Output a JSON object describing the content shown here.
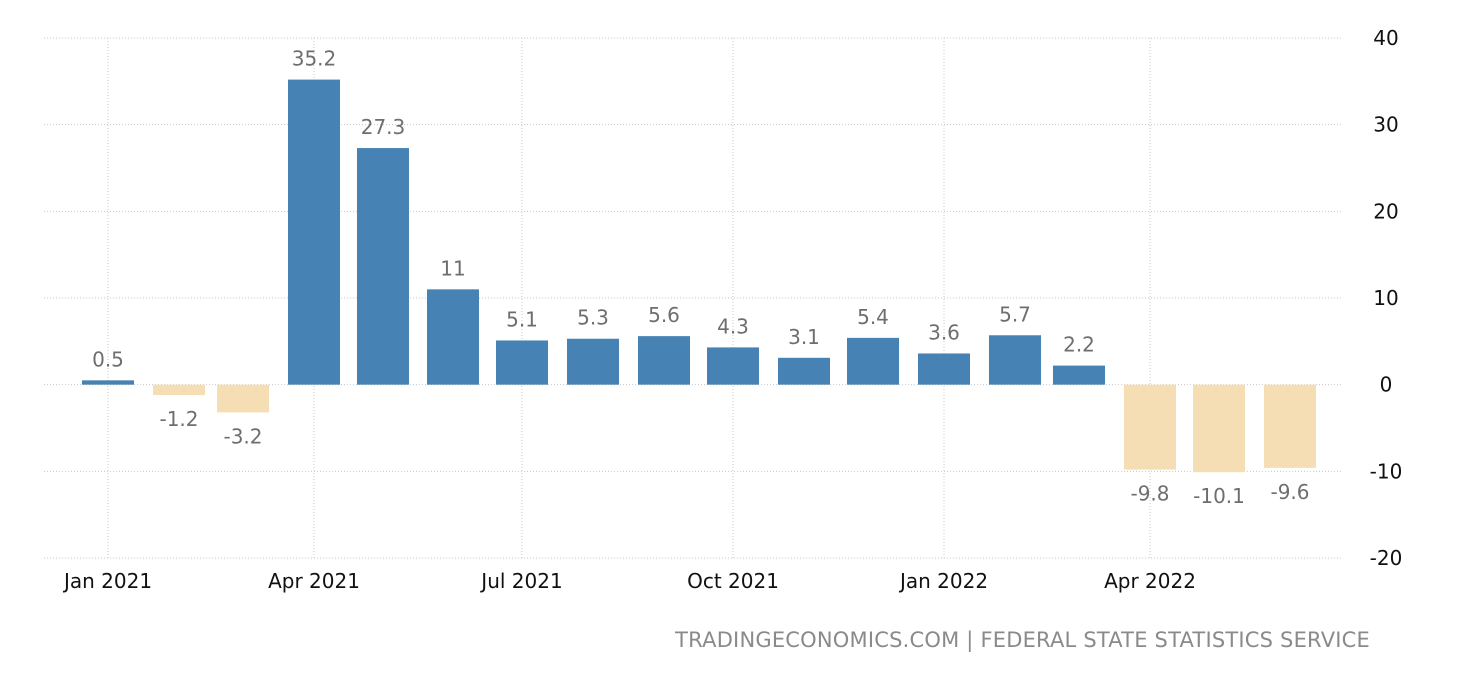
{
  "chart_data": {
    "type": "bar",
    "categories": [
      "Jan 2021",
      "Feb 2021",
      "Mar 2021",
      "Apr 2021",
      "May 2021",
      "Jun 2021",
      "Jul 2021",
      "Aug 2021",
      "Sep 2021",
      "Oct 2021",
      "Nov 2021",
      "Dec 2021",
      "Jan 2022",
      "Feb 2022",
      "Mar 2022",
      "Apr 2022",
      "May 2022",
      "Jun 2022"
    ],
    "values": [
      0.5,
      -1.2,
      -3.2,
      35.2,
      27.3,
      11,
      5.1,
      5.3,
      5.6,
      4.3,
      3.1,
      5.4,
      3.6,
      5.7,
      2.2,
      -9.8,
      -10.1,
      -9.6
    ],
    "data_labels": [
      "0.5",
      "-1.2",
      "-3.2",
      "35.2",
      "27.3",
      "11",
      "5.1",
      "5.3",
      "5.6",
      "4.3",
      "3.1",
      "5.4",
      "3.6",
      "5.7",
      "2.2",
      "-9.8",
      "-10.1",
      "-9.6"
    ],
    "x_tick_labels": [
      "Jan 2021",
      "Apr 2021",
      "Jul 2021",
      "Oct 2021",
      "Jan 2022",
      "Apr 2022"
    ],
    "y_ticks": [
      40,
      30,
      20,
      10,
      0,
      -10,
      -20
    ],
    "ylim": [
      -20,
      40
    ],
    "title": "",
    "xlabel": "",
    "ylabel": "",
    "grid": true,
    "y_axis_side": "right",
    "colors": {
      "positive": "#4682b4",
      "negative": "#f5deb3"
    }
  },
  "source": {
    "text": "TRADINGECONOMICS.COM | FEDERAL STATE STATISTICS SERVICE"
  }
}
